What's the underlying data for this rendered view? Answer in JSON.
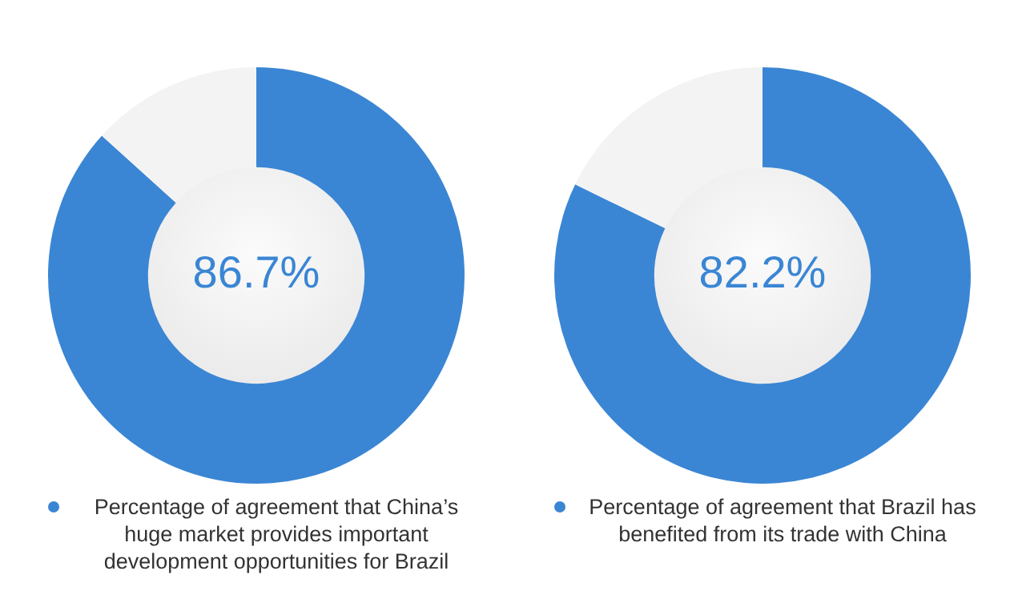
{
  "chart_data": [
    {
      "type": "donut",
      "categories": [
        "Percentage of agreement that China’s huge market provides important development opportunities for Brazil",
        null
      ],
      "values": [
        86.7,
        13.3
      ],
      "colors": [
        "#3a86d4",
        "#f3f3f3"
      ],
      "value_labels": [
        "86.7%",
        null
      ],
      "legend": "bottom"
    },
    {
      "type": "donut",
      "categories": [
        "Percentage of agreement that Brazil has benefited from its trade with China",
        null
      ],
      "values": [
        82.2,
        17.8
      ],
      "colors": [
        "#3a86d4",
        "#f3f3f3"
      ],
      "value_labels": [
        "82.2%",
        null
      ],
      "legend": "bottom"
    }
  ]
}
